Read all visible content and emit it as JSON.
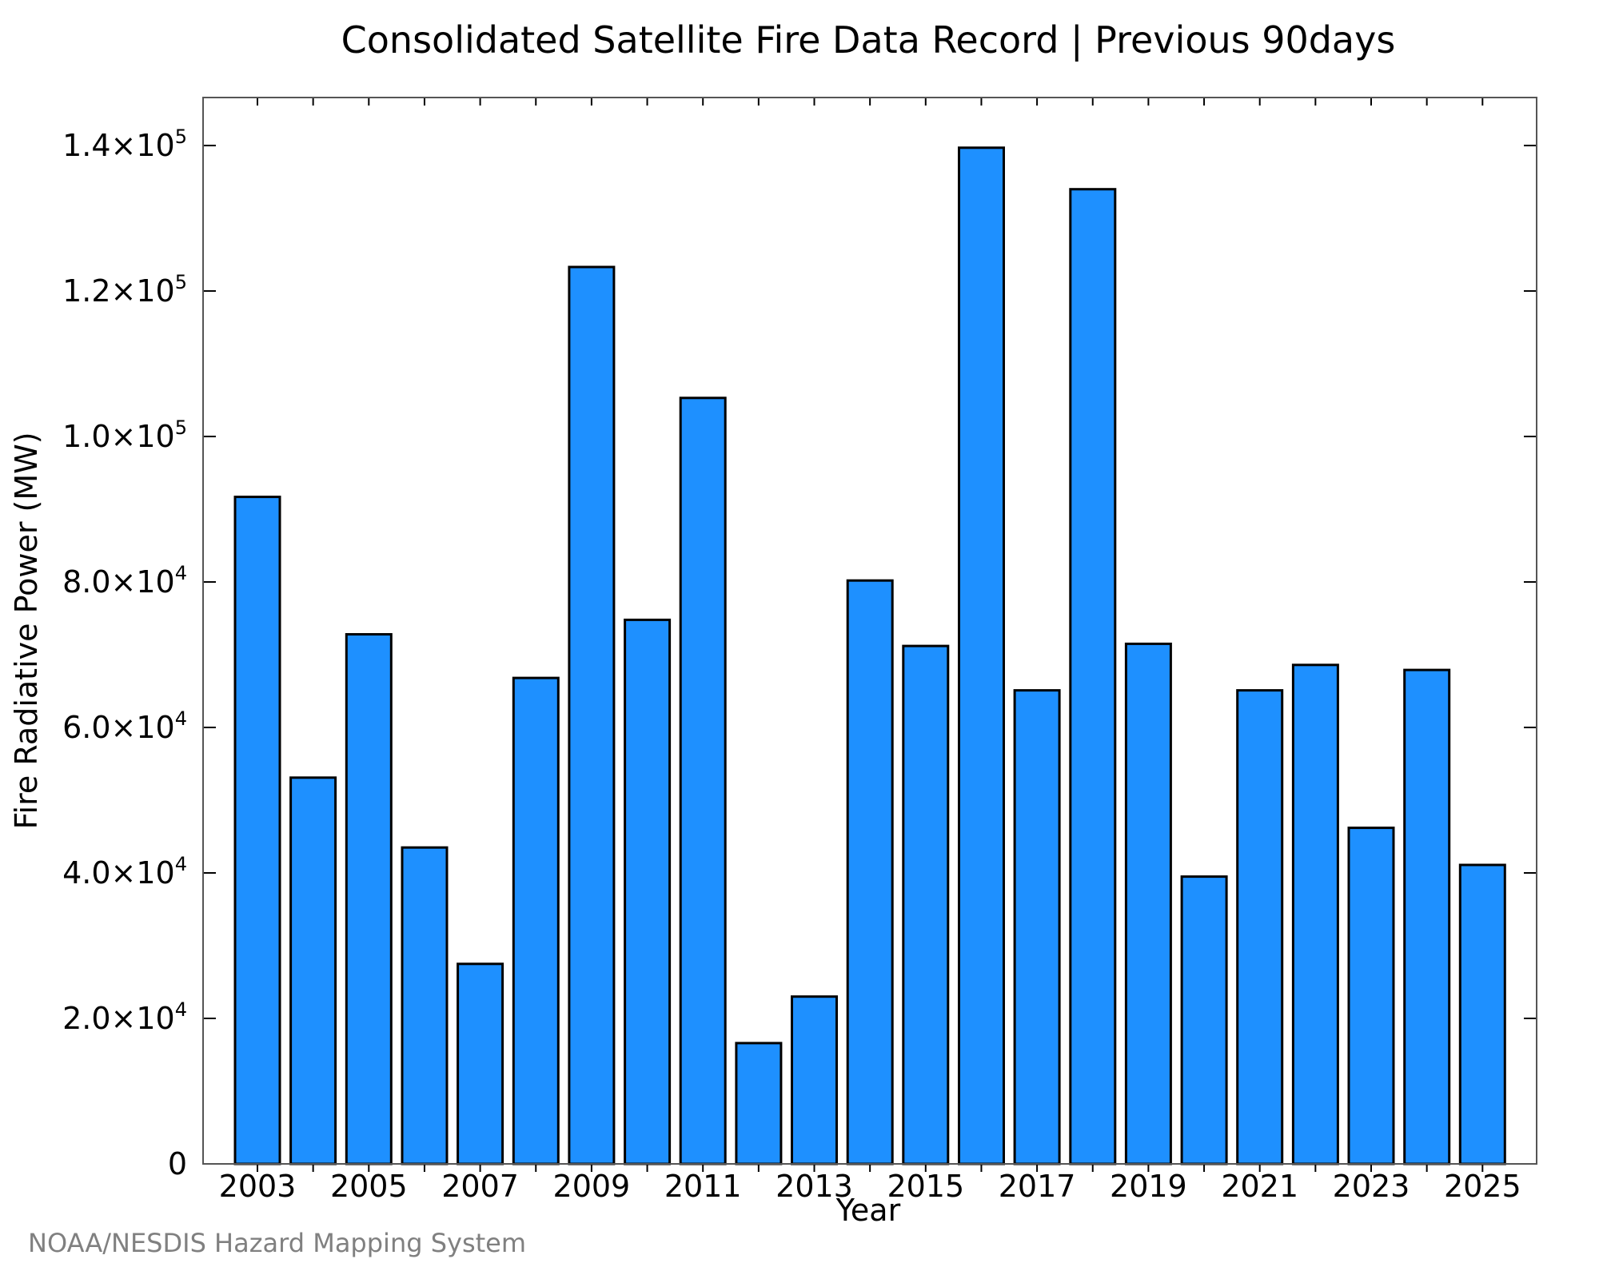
{
  "chart_data": {
    "type": "bar",
    "title": "Consolidated Satellite Fire Data Record | Previous 90days",
    "xlabel": "Year",
    "ylabel": "Fire Radiative Power (MW)",
    "credit": "NOAA/NESDIS Hazard Mapping System",
    "categories": [
      "2003",
      "2004",
      "2005",
      "2006",
      "2007",
      "2008",
      "2009",
      "2010",
      "2011",
      "2012",
      "2013",
      "2014",
      "2015",
      "2016",
      "2017",
      "2018",
      "2019",
      "2020",
      "2021",
      "2022",
      "2023",
      "2024",
      "2025"
    ],
    "values": [
      91700,
      53100,
      72800,
      43500,
      27500,
      66800,
      123300,
      74800,
      105300,
      16600,
      23000,
      80200,
      71200,
      139700,
      65100,
      134000,
      71500,
      39500,
      65100,
      68600,
      46200,
      67900,
      41100
    ],
    "xtick_labels": [
      "2003",
      "2005",
      "2007",
      "2009",
      "2011",
      "2013",
      "2015",
      "2017",
      "2019",
      "2021",
      "2023",
      "2025"
    ],
    "yticks": [
      {
        "value": 0,
        "mantissa": "0",
        "exp": ""
      },
      {
        "value": 20000,
        "mantissa": "2.0×10",
        "exp": "4"
      },
      {
        "value": 40000,
        "mantissa": "4.0×10",
        "exp": "4"
      },
      {
        "value": 60000,
        "mantissa": "6.0×10",
        "exp": "4"
      },
      {
        "value": 80000,
        "mantissa": "8.0×10",
        "exp": "4"
      },
      {
        "value": 100000,
        "mantissa": "1.0×10",
        "exp": "5"
      },
      {
        "value": 120000,
        "mantissa": "1.2×10",
        "exp": "5"
      },
      {
        "value": 140000,
        "mantissa": "1.4×10",
        "exp": "5"
      }
    ],
    "ylim": [
      0,
      146600
    ],
    "bar_color": "#1e90ff",
    "bar_edge_color": "#000000",
    "grid": false
  }
}
